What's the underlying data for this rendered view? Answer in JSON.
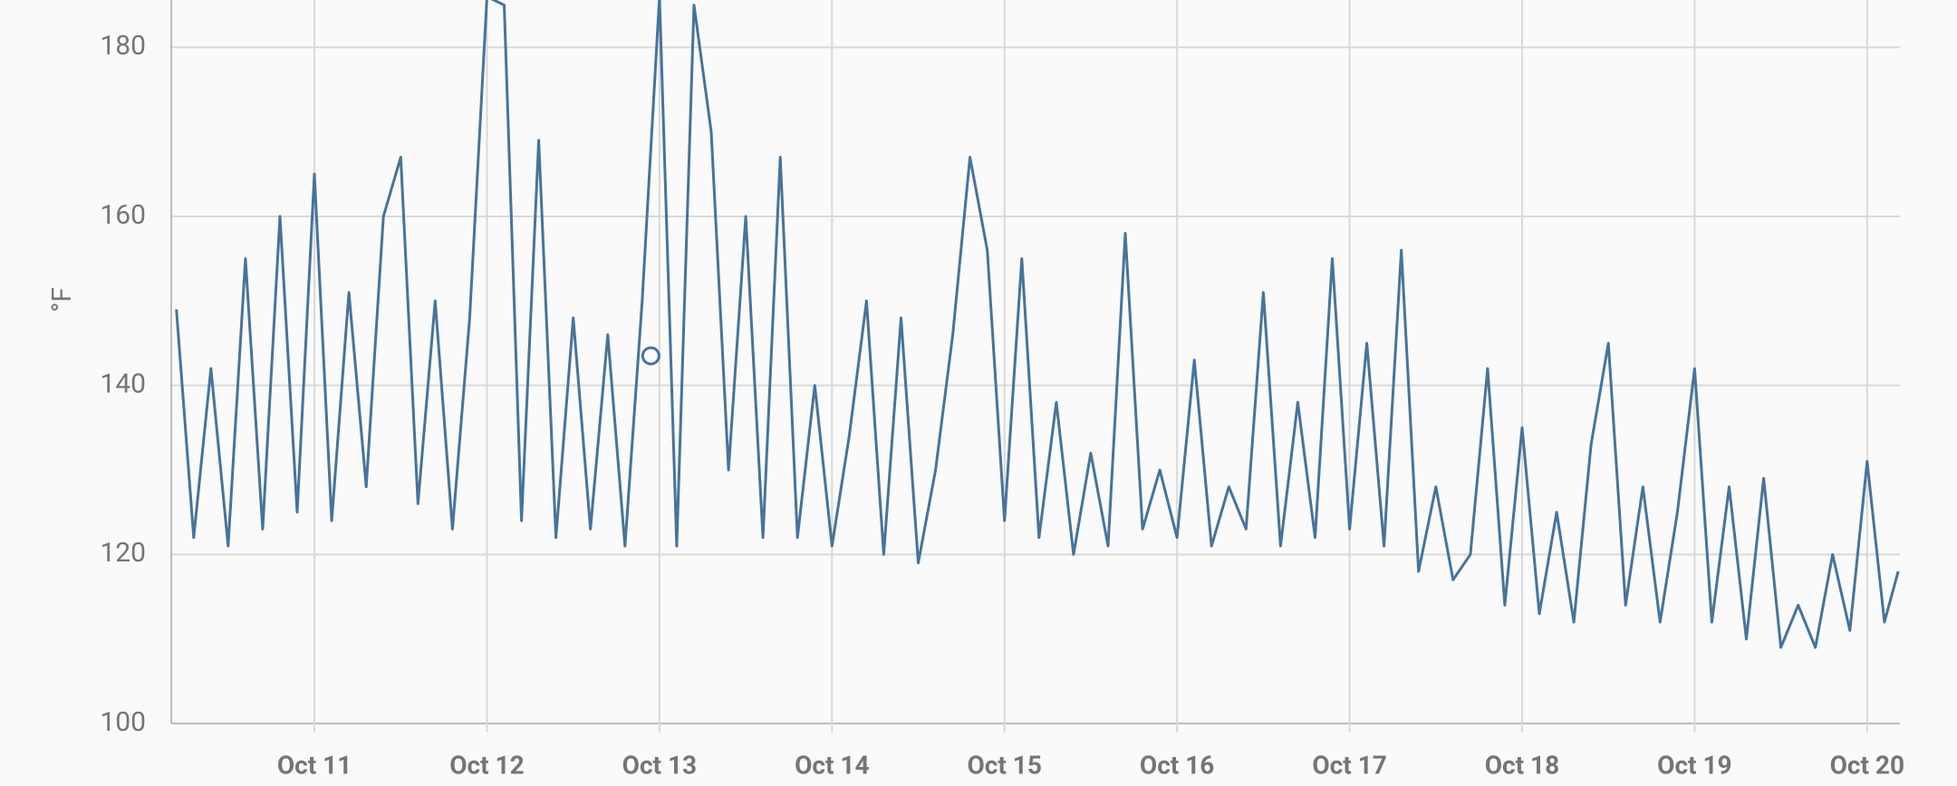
{
  "chart_data": {
    "type": "line",
    "y_label": "°F",
    "color": "#47739c",
    "grid": true,
    "x": [
      10.2,
      10.3,
      10.4,
      10.5,
      10.6,
      10.7,
      10.8,
      10.9,
      11.0,
      11.1,
      11.2,
      11.3,
      11.4,
      11.5,
      11.6,
      11.7,
      11.8,
      11.9,
      12.0,
      12.1,
      12.2,
      12.3,
      12.4,
      12.5,
      12.6,
      12.7,
      12.8,
      12.9,
      13.0,
      13.1,
      13.2,
      13.3,
      13.4,
      13.5,
      13.6,
      13.7,
      13.8,
      13.9,
      14.0,
      14.1,
      14.2,
      14.3,
      14.4,
      14.5,
      14.6,
      14.7,
      14.8,
      14.9,
      15.0,
      15.1,
      15.2,
      15.3,
      15.4,
      15.5,
      15.6,
      15.7,
      15.8,
      15.9,
      16.0,
      16.1,
      16.2,
      16.3,
      16.4,
      16.5,
      16.6,
      16.7,
      16.8,
      16.9,
      17.0,
      17.1,
      17.2,
      17.3,
      17.4,
      17.5,
      17.6,
      17.7,
      17.8,
      17.9,
      18.0,
      18.1,
      18.2,
      18.3,
      18.4,
      18.5,
      18.6,
      18.7,
      18.8,
      18.9,
      19.0,
      19.1,
      19.2,
      19.3,
      19.4,
      19.5,
      19.6,
      19.7,
      19.8,
      19.9,
      20.0,
      20.1,
      20.18
    ],
    "values": [
      149,
      122,
      142,
      121,
      155,
      123,
      160,
      125,
      165,
      124,
      151,
      128,
      160,
      167,
      126,
      150,
      123,
      148,
      186,
      185,
      124,
      169,
      122,
      148,
      123,
      146,
      121,
      150,
      186,
      121,
      185,
      170,
      130,
      160,
      122,
      167,
      122,
      140,
      121,
      134,
      150,
      120,
      148,
      119,
      130,
      146,
      167,
      156,
      124,
      155,
      122,
      138,
      120,
      132,
      121,
      158,
      123,
      130,
      122,
      143,
      121,
      128,
      123,
      151,
      121,
      138,
      122,
      155,
      123,
      145,
      121,
      156,
      118,
      128,
      117,
      120,
      142,
      114,
      135,
      113,
      125,
      112,
      133,
      145,
      114,
      128,
      112,
      125,
      142,
      112,
      128,
      110,
      129,
      109,
      114,
      109,
      120,
      111,
      131,
      112,
      118
    ],
    "highlight": {
      "x": 12.95,
      "y": 143.5
    },
    "xlim": [
      10.17,
      20.19
    ],
    "xticks": [
      {
        "value": 11,
        "label": "Oct 11"
      },
      {
        "value": 12,
        "label": "Oct 12"
      },
      {
        "value": 13,
        "label": "Oct 13"
      },
      {
        "value": 14,
        "label": "Oct 14"
      },
      {
        "value": 15,
        "label": "Oct 15"
      },
      {
        "value": 16,
        "label": "Oct 16"
      },
      {
        "value": 17,
        "label": "Oct 17"
      },
      {
        "value": 18,
        "label": "Oct 18"
      },
      {
        "value": 19,
        "label": "Oct 19"
      },
      {
        "value": 20,
        "label": "Oct 20"
      }
    ],
    "ylim": [
      100,
      185.6
    ],
    "yticks": [
      100,
      120,
      140,
      160,
      180
    ]
  }
}
